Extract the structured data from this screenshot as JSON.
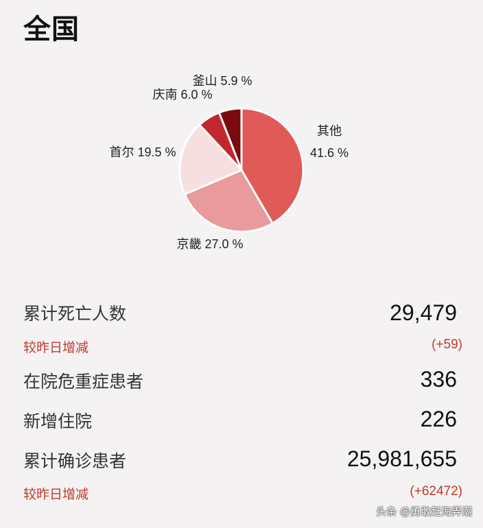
{
  "header": {
    "title": "全国"
  },
  "chart_data": {
    "type": "pie",
    "slices": [
      {
        "label": "其他",
        "value": 41.6,
        "text": "41.6 %",
        "color": "#e05a58"
      },
      {
        "label": "京畿",
        "value": 27.0,
        "text": "27.0 %",
        "color": "#e99a9c"
      },
      {
        "label": "首尔",
        "value": 19.5,
        "text": "19.5 %",
        "color": "#f7dfe1"
      },
      {
        "label": "庆南",
        "value": 6.0,
        "text": "6.0 %",
        "color": "#c1272d"
      },
      {
        "label": "釜山",
        "value": 5.9,
        "text": "5.9 %",
        "color": "#7a0a0e"
      }
    ]
  },
  "stats": {
    "deaths": {
      "label": "累计死亡人数",
      "value": "29,479"
    },
    "deaths_delta": {
      "label": "较昨日增减",
      "value": "(+59)"
    },
    "critical": {
      "label": "在院危重症患者",
      "value": "336"
    },
    "new_hospitalized": {
      "label": "新增住院",
      "value": "226"
    },
    "confirmed": {
      "label": "累计确诊患者",
      "value": "25,981,655"
    },
    "confirmed_delta": {
      "label": "较昨日增减",
      "value": "(+62472)"
    }
  },
  "watermark": {
    "text": "头条 @勇敢赶海弄潮"
  }
}
